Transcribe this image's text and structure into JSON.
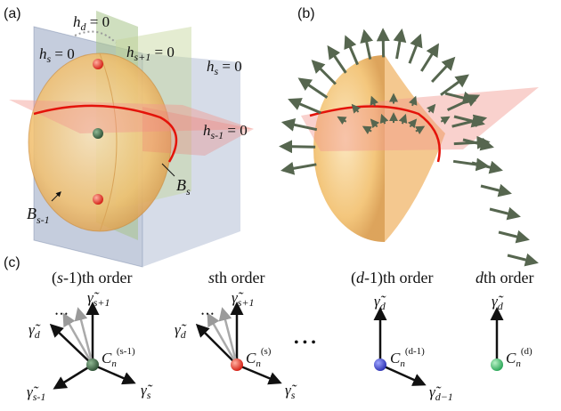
{
  "panels": {
    "a": {
      "label": "(a)",
      "planes": {
        "hd": "h",
        "hd_sub": "d",
        "hd_eq": " = 0",
        "hs_left": "h",
        "hs_left_sub": "s",
        "hs_left_eq": " = 0",
        "hs1": "h",
        "hs1_sub": "s+1",
        "hs1_eq": " = 0",
        "hs_right": "h",
        "hs_right_sub": "s",
        "hs_right_eq": " = 0",
        "hsm1": "h",
        "hsm1_sub": "s-1",
        "hsm1_eq": " = 0"
      },
      "curves": {
        "Bs": "B",
        "Bs_sub": "s",
        "Bsm1": "B",
        "Bsm1_sub": "s-1"
      }
    },
    "b": {
      "label": "(b)"
    },
    "c": {
      "label": "(c)",
      "columns": [
        {
          "order_prefix": "(",
          "order_var": "s",
          "order_suffix": "-1)th order",
          "up": "γ̃",
          "up_sub": "s+1",
          "left": "γ̃",
          "left_sub": "d",
          "right": "γ̃",
          "right_sub": "s",
          "down": "γ̃",
          "down_sub": "s-1",
          "node": "C",
          "node_sub": "n",
          "node_sup": "(s-1)",
          "node_color": "#3f6a44"
        },
        {
          "order_prefix": "",
          "order_var": "s",
          "order_suffix": "th order",
          "up": "γ̃",
          "up_sub": "s+1",
          "left": "γ̃",
          "left_sub": "d",
          "right": "γ̃",
          "right_sub": "s",
          "node": "C",
          "node_sub": "n",
          "node_sup": "(s)",
          "node_color": "#e8241c"
        },
        {
          "order_prefix": "(",
          "order_var": "d",
          "order_suffix": "-1)th order",
          "up": "γ̃",
          "up_sub": "d",
          "right": "γ̃",
          "right_sub": "d−1",
          "node": "C",
          "node_sub": "n",
          "node_sup": "(d-1)",
          "node_color": "#3a3fd0"
        },
        {
          "order_prefix": "",
          "order_var": "d",
          "order_suffix": "th order",
          "up": "γ̃",
          "up_sub": "d",
          "node": "C",
          "node_sub": "n",
          "node_sup": "(d)",
          "node_color": "#33b866"
        }
      ],
      "ellipsis": "• • •"
    }
  }
}
